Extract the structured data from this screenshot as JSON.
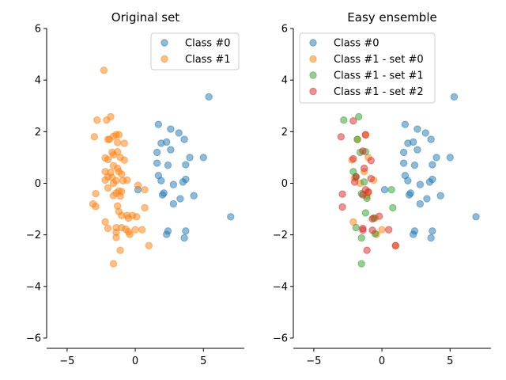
{
  "chart_data": [
    {
      "type": "scatter",
      "title": "Original set",
      "xlim": [
        -6.5,
        8
      ],
      "ylim": [
        -6,
        6
      ],
      "xticks": [
        -5,
        0,
        5
      ],
      "yticks": [
        -6,
        -4,
        -2,
        0,
        2,
        4,
        6
      ],
      "grid": false,
      "legend": "top-right",
      "series": [
        {
          "name": "Class #0",
          "color": "#1f77b4",
          "points": [
            [
              5.4,
              3.35
            ],
            [
              1.7,
              2.28
            ],
            [
              2.6,
              2.1
            ],
            [
              3.2,
              1.95
            ],
            [
              2.3,
              1.6
            ],
            [
              1.9,
              1.55
            ],
            [
              3.6,
              1.7
            ],
            [
              2.6,
              1.3
            ],
            [
              1.6,
              1.2
            ],
            [
              4.0,
              1.0
            ],
            [
              5.0,
              1.0
            ],
            [
              1.6,
              0.78
            ],
            [
              2.4,
              0.7
            ],
            [
              3.7,
              0.72
            ],
            [
              1.7,
              0.3
            ],
            [
              1.9,
              0.1
            ],
            [
              3.7,
              0.15
            ],
            [
              2.8,
              -0.05
            ],
            [
              3.5,
              0.05
            ],
            [
              0.2,
              -0.25
            ],
            [
              2.1,
              -0.38
            ],
            [
              2.0,
              -0.45
            ],
            [
              4.3,
              -0.48
            ],
            [
              3.3,
              -0.6
            ],
            [
              2.8,
              -0.8
            ],
            [
              7.0,
              -1.3
            ],
            [
              2.4,
              -1.85
            ],
            [
              2.3,
              -1.98
            ],
            [
              3.7,
              -1.85
            ],
            [
              3.6,
              -2.12
            ]
          ]
        },
        {
          "name": "Class #1",
          "color": "#ff7f0e",
          "points": [
            [
              -2.3,
              4.38
            ],
            [
              -2.8,
              2.45
            ],
            [
              -2.1,
              2.45
            ],
            [
              -1.8,
              2.58
            ],
            [
              -1.4,
              1.88
            ],
            [
              -1.2,
              1.88
            ],
            [
              -1.6,
              1.82
            ],
            [
              -3.0,
              1.8
            ],
            [
              -1.9,
              1.7
            ],
            [
              -2.0,
              1.7
            ],
            [
              -1.3,
              1.58
            ],
            [
              -0.8,
              1.55
            ],
            [
              -1.3,
              1.22
            ],
            [
              -1.7,
              1.2
            ],
            [
              -1.6,
              1.1
            ],
            [
              -1.1,
              1.0
            ],
            [
              -2.2,
              0.98
            ],
            [
              -2.0,
              0.92
            ],
            [
              -0.8,
              0.9
            ],
            [
              -1.6,
              0.68
            ],
            [
              -2.2,
              0.45
            ],
            [
              -1.8,
              0.42
            ],
            [
              -1.3,
              0.58
            ],
            [
              -1.2,
              0.45
            ],
            [
              -1.0,
              0.35
            ],
            [
              -2.0,
              0.25
            ],
            [
              -1.7,
              0.22
            ],
            [
              -2.2,
              0.12
            ],
            [
              -1.4,
              0.1
            ],
            [
              -0.6,
              0.12
            ],
            [
              -0.9,
              0.1
            ],
            [
              -1.6,
              0.0
            ],
            [
              -2.0,
              -0.18
            ],
            [
              0.2,
              -0.08
            ],
            [
              0.7,
              -0.25
            ],
            [
              -1.2,
              -0.3
            ],
            [
              -1.4,
              -0.38
            ],
            [
              -1.0,
              -0.32
            ],
            [
              -2.9,
              -0.4
            ],
            [
              -1.1,
              -0.5
            ],
            [
              -1.6,
              -0.48
            ],
            [
              -3.1,
              -0.8
            ],
            [
              -2.9,
              -0.9
            ],
            [
              -1.3,
              -0.88
            ],
            [
              -0.6,
              -1.25
            ],
            [
              -0.2,
              -1.25
            ],
            [
              0.1,
              -1.3
            ],
            [
              -0.5,
              -1.35
            ],
            [
              -1.2,
              -1.1
            ],
            [
              -1.0,
              -1.25
            ],
            [
              0.7,
              -0.95
            ],
            [
              -2.2,
              -1.5
            ],
            [
              -1.4,
              -1.72
            ],
            [
              -1.0,
              -1.72
            ],
            [
              -0.7,
              -1.78
            ],
            [
              -2.0,
              -1.75
            ],
            [
              0.0,
              -1.8
            ],
            [
              0.5,
              -1.8
            ],
            [
              -0.5,
              -1.88
            ],
            [
              -0.4,
              -1.98
            ],
            [
              -1.4,
              -1.9
            ],
            [
              -1.4,
              -2.1
            ],
            [
              1.0,
              -2.42
            ],
            [
              -1.1,
              -2.6
            ],
            [
              -1.6,
              -3.12
            ]
          ]
        }
      ]
    },
    {
      "type": "scatter",
      "title": "Easy ensemble",
      "xlim": [
        -6.5,
        8
      ],
      "ylim": [
        -6,
        6
      ],
      "xticks": [
        -5,
        0,
        5
      ],
      "yticks": [
        -6,
        -4,
        -2,
        0,
        2,
        4,
        6
      ],
      "grid": false,
      "legend": "top-left",
      "series": [
        {
          "name": "Class #0",
          "color": "#1f77b4",
          "points": [
            [
              5.3,
              3.35
            ],
            [
              1.7,
              2.28
            ],
            [
              2.6,
              2.1
            ],
            [
              3.2,
              1.95
            ],
            [
              2.3,
              1.6
            ],
            [
              1.9,
              1.55
            ],
            [
              3.6,
              1.7
            ],
            [
              2.6,
              1.3
            ],
            [
              1.6,
              1.2
            ],
            [
              4.0,
              1.0
            ],
            [
              5.0,
              1.0
            ],
            [
              1.6,
              0.78
            ],
            [
              2.4,
              0.7
            ],
            [
              3.7,
              0.72
            ],
            [
              1.7,
              0.3
            ],
            [
              1.9,
              0.1
            ],
            [
              3.7,
              0.15
            ],
            [
              2.8,
              -0.05
            ],
            [
              3.5,
              0.05
            ],
            [
              0.2,
              -0.25
            ],
            [
              2.1,
              -0.38
            ],
            [
              2.0,
              -0.45
            ],
            [
              4.3,
              -0.48
            ],
            [
              3.3,
              -0.6
            ],
            [
              2.8,
              -0.8
            ],
            [
              6.9,
              -1.3
            ],
            [
              2.4,
              -1.85
            ],
            [
              2.3,
              -1.98
            ],
            [
              3.7,
              -1.85
            ],
            [
              3.6,
              -2.12
            ]
          ]
        },
        {
          "name": "Class #1 - set #0",
          "color": "#ff7f0e",
          "points": [
            [
              -1.2,
              1.88
            ],
            [
              -1.8,
              1.7
            ],
            [
              -1.0,
              1.0
            ],
            [
              -2.2,
              0.9
            ],
            [
              -1.3,
              0.45
            ],
            [
              -2.0,
              0.2
            ],
            [
              -0.6,
              0.12
            ],
            [
              -1.6,
              0.0
            ],
            [
              -1.0,
              -0.32
            ],
            [
              -1.1,
              -0.5
            ],
            [
              -0.5,
              -1.35
            ],
            [
              -2.1,
              -1.5
            ],
            [
              0.0,
              -1.8
            ],
            [
              -0.4,
              -1.98
            ],
            [
              1.0,
              -2.42
            ]
          ]
        },
        {
          "name": "Class #1 - set #1",
          "color": "#2ca02c",
          "points": [
            [
              -1.7,
              2.58
            ],
            [
              -2.8,
              2.45
            ],
            [
              -1.8,
              1.7
            ],
            [
              -1.6,
              1.2
            ],
            [
              -1.2,
              1.22
            ],
            [
              -2.1,
              0.45
            ],
            [
              -1.9,
              0.25
            ],
            [
              -1.3,
              0.05
            ],
            [
              -1.5,
              -0.4
            ],
            [
              -1.1,
              -0.58
            ],
            [
              0.7,
              -0.25
            ],
            [
              0.8,
              -0.95
            ],
            [
              -1.2,
              -1.15
            ],
            [
              -0.6,
              -1.35
            ],
            [
              -1.9,
              -1.72
            ],
            [
              -0.5,
              -1.95
            ],
            [
              -1.5,
              -2.12
            ],
            [
              -1.5,
              -3.12
            ]
          ]
        },
        {
          "name": "Class #1 - set #2",
          "color": "#d62728",
          "points": [
            [
              -2.1,
              2.42
            ],
            [
              -1.2,
              1.88
            ],
            [
              -3.0,
              1.8
            ],
            [
              -1.4,
              1.25
            ],
            [
              -0.8,
              0.88
            ],
            [
              -2.1,
              0.95
            ],
            [
              -1.3,
              0.58
            ],
            [
              -1.9,
              0.25
            ],
            [
              -0.8,
              0.18
            ],
            [
              -2.0,
              0.05
            ],
            [
              -1.2,
              -0.25
            ],
            [
              -1.0,
              -0.35
            ],
            [
              -1.4,
              -0.45
            ],
            [
              -2.9,
              -0.42
            ],
            [
              -2.9,
              -0.92
            ],
            [
              -0.7,
              -1.38
            ],
            [
              -0.2,
              -1.28
            ],
            [
              -1.4,
              -1.75
            ],
            [
              -1.4,
              -1.82
            ],
            [
              -0.7,
              -1.82
            ],
            [
              0.5,
              -1.8
            ],
            [
              1.0,
              -2.42
            ],
            [
              -1.1,
              -2.6
            ]
          ]
        }
      ]
    }
  ]
}
